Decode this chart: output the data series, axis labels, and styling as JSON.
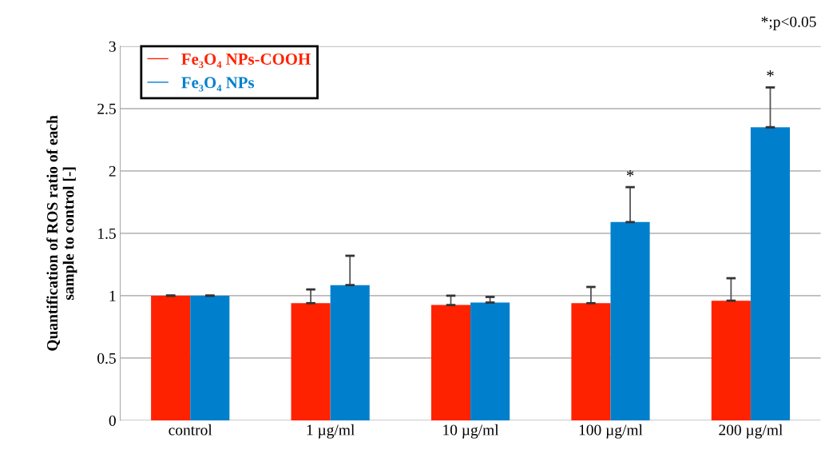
{
  "chart_data": {
    "type": "bar",
    "ylabel": "Quantification of ROS ratio of each\nsample to control [-]",
    "categories": [
      "control",
      "1 µg/ml",
      "10 µg/ml",
      "100 µg/ml",
      "200 µg/ml"
    ],
    "series": [
      {
        "name": "Fe₃O₄ NPs-COOH",
        "color": "#ff2200",
        "values": [
          1.0,
          0.94,
          0.925,
          0.94,
          0.96
        ],
        "errors": [
          [
            1.0,
            1.0
          ],
          [
            0.94,
            1.05
          ],
          [
            0.925,
            1.0
          ],
          [
            0.94,
            1.07
          ],
          [
            0.96,
            1.14
          ]
        ]
      },
      {
        "name": "Fe₃O₄ NPs",
        "color": "#0080cc",
        "values": [
          1.0,
          1.085,
          0.945,
          1.59,
          2.35
        ],
        "errors": [
          [
            1.0,
            1.0
          ],
          [
            1.085,
            1.32
          ],
          [
            0.945,
            0.99
          ],
          [
            1.59,
            1.87
          ],
          [
            2.35,
            2.67
          ]
        ]
      }
    ],
    "ylim": [
      0,
      3
    ],
    "yticks": [
      0,
      0.5,
      1,
      1.5,
      2,
      2.5,
      3
    ],
    "grid": "y",
    "legend": "top left",
    "annotations": [
      "*",
      "*",
      "*;p<0.05"
    ]
  }
}
